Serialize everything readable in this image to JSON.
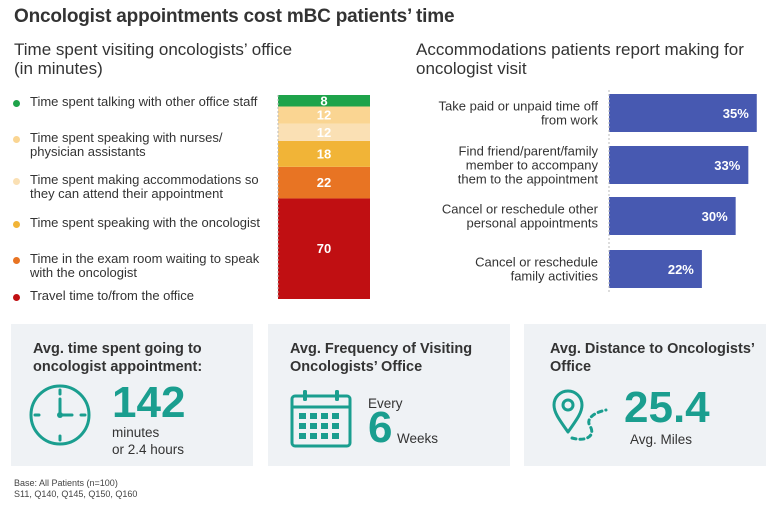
{
  "title": "Oncologist appointments cost mBC patients’ time",
  "left_heading": "Time spent visiting oncologists’ office",
  "left_subheading": "(in minutes)",
  "right_heading": "Accommodations patients report making for oncologist visit",
  "colors": {
    "talking_other_staff": "#1ea34a",
    "speaking_nurses": "#fad592",
    "making_accommodations": "#fae0b4",
    "speaking_oncologist": "#f1b437",
    "exam_room": "#e87423",
    "travel": "#c00f12",
    "hbar": "#4759b1",
    "teal": "#1a9e8f"
  },
  "chart_data": [
    {
      "type": "bar",
      "stacked": true,
      "orientation": "vertical",
      "title": "Time spent visiting oncologists’ office",
      "subtitle": "(in minutes)",
      "series": [
        {
          "name": "Travel time to/from the office",
          "value": 70,
          "color": "#c00f12"
        },
        {
          "name": "Time in the exam room waiting to speak with the oncologist",
          "value": 22,
          "color": "#e87423"
        },
        {
          "name": "Time spent speaking with the oncologist",
          "value": 18,
          "color": "#f1b437"
        },
        {
          "name": "Time spent making accommodations so they can attend their appointment",
          "value": 12,
          "color": "#fae0b4"
        },
        {
          "name": "Time spent speaking with nurses/ physician assistants",
          "value": 12,
          "color": "#fad592"
        },
        {
          "name": "Time spent talking with other office staff",
          "value": 8,
          "color": "#1ea34a"
        }
      ],
      "legend_order": [
        {
          "name": "Time spent talking with other office staff",
          "color": "#1ea34a"
        },
        {
          "name": "Time spent speaking with nurses/ physician assistants",
          "color": "#fad592"
        },
        {
          "name": "Time spent making accommodations so they can attend their appointment",
          "color": "#fae0b4"
        },
        {
          "name": "Time spent speaking with the oncologist",
          "color": "#f1b437"
        },
        {
          "name": "Time in the exam room waiting to speak with the oncologist",
          "color": "#e87423"
        },
        {
          "name": "Travel time to/from the office",
          "color": "#c00f12"
        }
      ],
      "legend": "left"
    },
    {
      "type": "bar",
      "orientation": "horizontal",
      "title": "Accommodations patients report making for oncologist visit",
      "categories": [
        "Take paid or unpaid time off from work",
        "Find friend/parent/family member to accompany them to the appointment",
        "Cancel or reschedule other personal appointments",
        "Cancel or reschedule family activities"
      ],
      "values": [
        35,
        33,
        30,
        22
      ],
      "value_labels": [
        "35%",
        "33%",
        "30%",
        "22%"
      ],
      "xlim": [
        0,
        36
      ]
    }
  ],
  "cards": {
    "time": {
      "heading": "Avg. time spent going to oncologist appointment:",
      "value": "142",
      "unit": "minutes",
      "alt": "or 2.4 hours",
      "icon": "clock-icon"
    },
    "frequency": {
      "heading": "Avg. Frequency of Visiting Oncologists’ Office",
      "prefix": "Every",
      "value": "6",
      "unit": "Weeks",
      "icon": "calendar-icon"
    },
    "distance": {
      "heading": "Avg. Distance to Oncologists’ Office",
      "value": "25.4",
      "unit": "Avg. Miles",
      "icon": "map-pin-icon"
    }
  },
  "footnote_lines": [
    "Base: All Patients (n=100)",
    "S11, Q140, Q145, Q150, Q160"
  ]
}
